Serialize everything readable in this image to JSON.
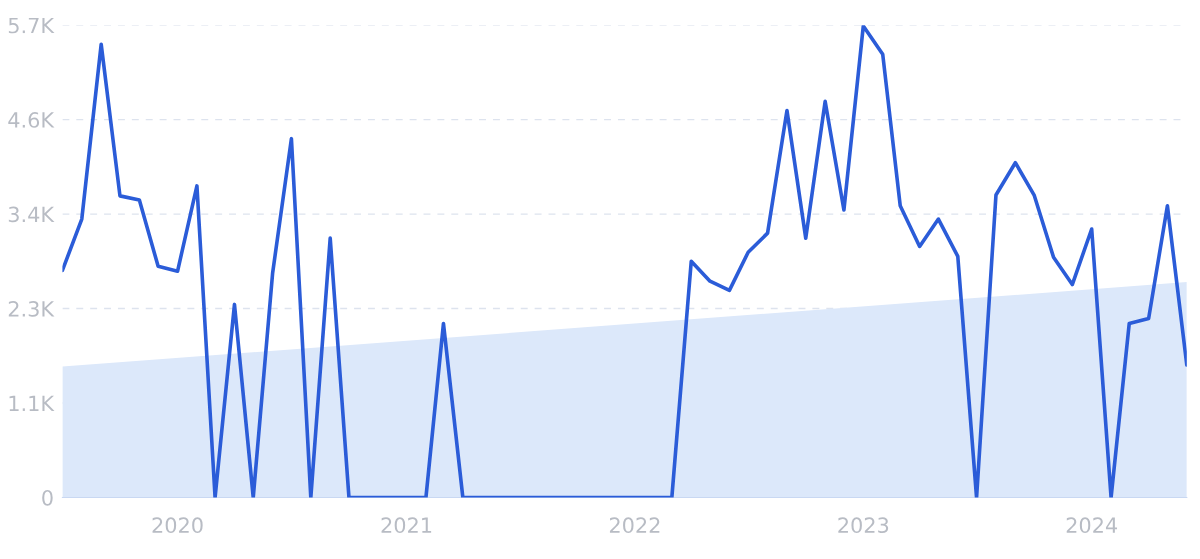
{
  "chart_data": {
    "type": "line",
    "x": [
      "2019-07",
      "2019-08",
      "2019-09",
      "2019-10",
      "2019-11",
      "2019-12",
      "2020-01",
      "2020-02",
      "2020-03",
      "2020-04",
      "2020-05",
      "2020-06",
      "2020-07",
      "2020-08",
      "2020-09",
      "2020-10",
      "2020-11",
      "2020-12",
      "2021-01",
      "2021-02",
      "2021-03",
      "2021-04",
      "2021-05",
      "2021-06",
      "2021-07",
      "2021-08",
      "2021-09",
      "2021-10",
      "2021-11",
      "2021-12",
      "2022-01",
      "2022-02",
      "2022-03",
      "2022-04",
      "2022-05",
      "2022-06",
      "2022-07",
      "2022-08",
      "2022-09",
      "2022-10",
      "2022-11",
      "2022-12",
      "2023-01",
      "2023-02",
      "2023-03",
      "2023-04",
      "2023-05",
      "2023-06",
      "2023-07",
      "2023-08",
      "2023-09",
      "2023-10",
      "2023-11",
      "2023-12",
      "2024-01",
      "2024-02",
      "2024-03",
      "2024-04",
      "2024-05",
      "2024-06"
    ],
    "series": [
      {
        "type": "area",
        "color": "#dce8fa",
        "x": [
          "2019-07",
          "2024-06"
        ],
        "values": [
          1580,
          2600
        ]
      },
      {
        "color": "#2b5cd8",
        "values": [
          2740,
          3360,
          5470,
          3640,
          3590,
          2790,
          2730,
          3760,
          0,
          2330,
          0,
          2710,
          4330,
          0,
          3130,
          0,
          0,
          0,
          0,
          0,
          2100,
          0,
          0,
          0,
          0,
          0,
          0,
          0,
          0,
          0,
          0,
          0,
          0,
          2850,
          2610,
          2500,
          2960,
          3190,
          4670,
          3130,
          4780,
          3470,
          5690,
          5350,
          3520,
          3030,
          3360,
          2910,
          0,
          3650,
          4040,
          3650,
          2900,
          2570,
          3240,
          0,
          2100,
          2160,
          3520,
          1600
        ]
      }
    ],
    "xlim": [
      "2019-07",
      "2024-06"
    ],
    "xticks": [
      {
        "value": "2020",
        "label": "2020"
      },
      {
        "value": "2021",
        "label": "2021"
      },
      {
        "value": "2022",
        "label": "2022"
      },
      {
        "value": "2023",
        "label": "2023"
      },
      {
        "value": "2024",
        "label": "2024"
      }
    ],
    "ylim": [
      0,
      5700
    ],
    "yticks": [
      0,
      {
        "value": 1140,
        "label": "1.1K"
      },
      {
        "value": 2280,
        "label": "2.3K"
      },
      {
        "value": 3420,
        "label": "3.4K"
      },
      {
        "value": 4560,
        "label": "4.6K"
      },
      {
        "value": 5700,
        "label": "5.7K"
      }
    ],
    "grid": "y",
    "line_style": "solid",
    "marker": "none"
  }
}
